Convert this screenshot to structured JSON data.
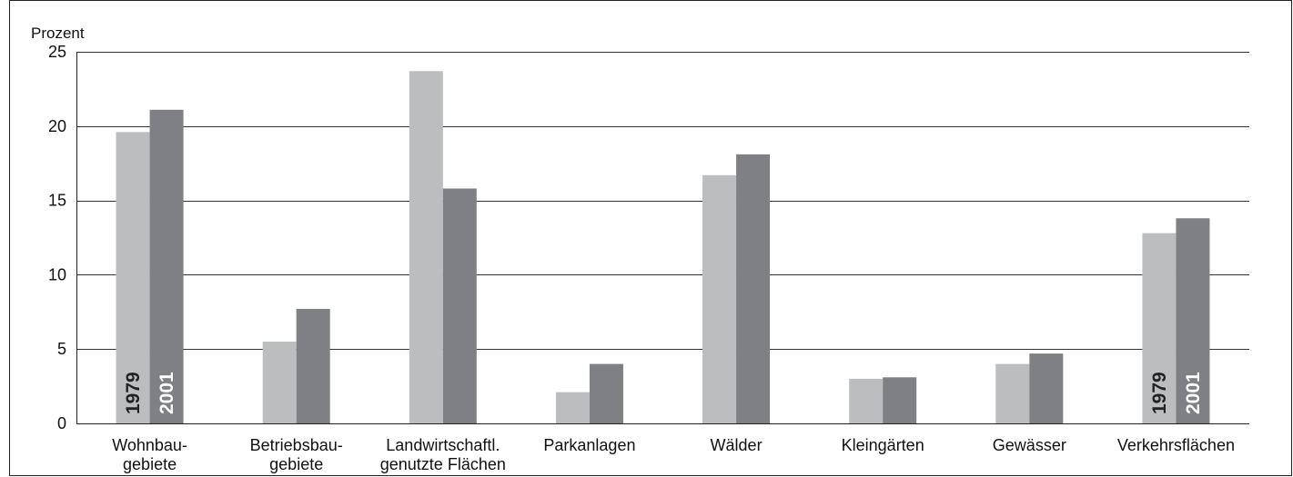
{
  "chart_data": {
    "type": "bar",
    "title": "",
    "xlabel": "",
    "ylabel": "Prozent",
    "ylim": [
      0,
      25
    ],
    "yticks": [
      0,
      5,
      10,
      15,
      20,
      25
    ],
    "grid": true,
    "categories": [
      [
        "Wohnbau-",
        "gebiete"
      ],
      [
        "Betriebsbau-",
        "gebiete"
      ],
      [
        "Landwirtschaftl.",
        "genutzte Flächen"
      ],
      [
        "Parkanlagen"
      ],
      [
        "Wälder"
      ],
      [
        "Kleingärten"
      ],
      [
        "Gewässer"
      ],
      [
        "Verkehrsflächen"
      ]
    ],
    "series": [
      {
        "name": "1979",
        "color": "#bcbdbf",
        "label_color": "#222222",
        "values": [
          19.6,
          5.5,
          23.7,
          2.1,
          16.7,
          3.0,
          4.0,
          12.8
        ]
      },
      {
        "name": "2001",
        "color": "#7f8083",
        "label_color": "#ffffff",
        "values": [
          21.1,
          7.7,
          15.8,
          4.0,
          18.1,
          3.1,
          4.7,
          13.8
        ]
      }
    ],
    "series_label_categories": [
      0,
      7
    ]
  },
  "colors": {
    "grid": "#333333",
    "frame": "#222222"
  }
}
